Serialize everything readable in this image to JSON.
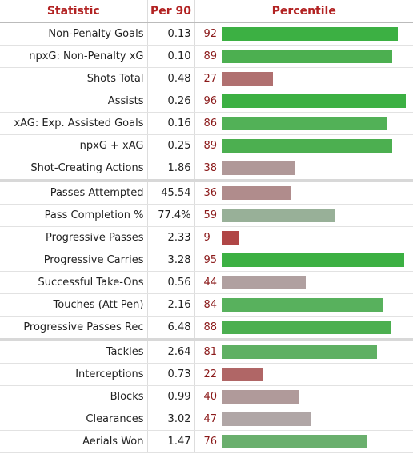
{
  "headers": {
    "statistic": "Statistic",
    "per90": "Per 90",
    "percentile": "Percentile"
  },
  "sections": [
    {
      "rows": [
        {
          "stat": "Non-Penalty Goals",
          "per90": "0.13",
          "percentile": 92,
          "color": "#3cb043"
        },
        {
          "stat": "npxG: Non-Penalty xG",
          "per90": "0.10",
          "percentile": 89,
          "color": "#4caf50"
        },
        {
          "stat": "Shots Total",
          "per90": "0.48",
          "percentile": 27,
          "color": "#b07070"
        },
        {
          "stat": "Assists",
          "per90": "0.26",
          "percentile": 96,
          "color": "#3cb043"
        },
        {
          "stat": "xAG: Exp. Assisted Goals",
          "per90": "0.16",
          "percentile": 86,
          "color": "#52b157"
        },
        {
          "stat": "npxG + xAG",
          "per90": "0.25",
          "percentile": 89,
          "color": "#4caf50"
        },
        {
          "stat": "Shot-Creating Actions",
          "per90": "1.86",
          "percentile": 38,
          "color": "#b09898"
        }
      ]
    },
    {
      "rows": [
        {
          "stat": "Passes Attempted",
          "per90": "45.54",
          "percentile": 36,
          "color": "#b08c8c"
        },
        {
          "stat": "Pass Completion %",
          "per90": "77.4%",
          "percentile": 59,
          "color": "#98b098"
        },
        {
          "stat": "Progressive Passes",
          "per90": "2.33",
          "percentile": 9,
          "color": "#b04646"
        },
        {
          "stat": "Progressive Carries",
          "per90": "3.28",
          "percentile": 95,
          "color": "#3cb043"
        },
        {
          "stat": "Successful Take-Ons",
          "per90": "0.56",
          "percentile": 44,
          "color": "#b0a0a0"
        },
        {
          "stat": "Touches (Att Pen)",
          "per90": "2.16",
          "percentile": 84,
          "color": "#58b15d"
        },
        {
          "stat": "Progressive Passes Rec",
          "per90": "6.48",
          "percentile": 88,
          "color": "#4caf50"
        }
      ]
    },
    {
      "rows": [
        {
          "stat": "Tackles",
          "per90": "2.64",
          "percentile": 81,
          "color": "#5fb063"
        },
        {
          "stat": "Interceptions",
          "per90": "0.73",
          "percentile": 22,
          "color": "#b06666"
        },
        {
          "stat": "Blocks",
          "per90": "0.99",
          "percentile": 40,
          "color": "#b09a9a"
        },
        {
          "stat": "Clearances",
          "per90": "3.02",
          "percentile": 47,
          "color": "#b0a6a6"
        },
        {
          "stat": "Aerials Won",
          "per90": "1.47",
          "percentile": 76,
          "color": "#6aaf6d"
        }
      ]
    }
  ]
}
